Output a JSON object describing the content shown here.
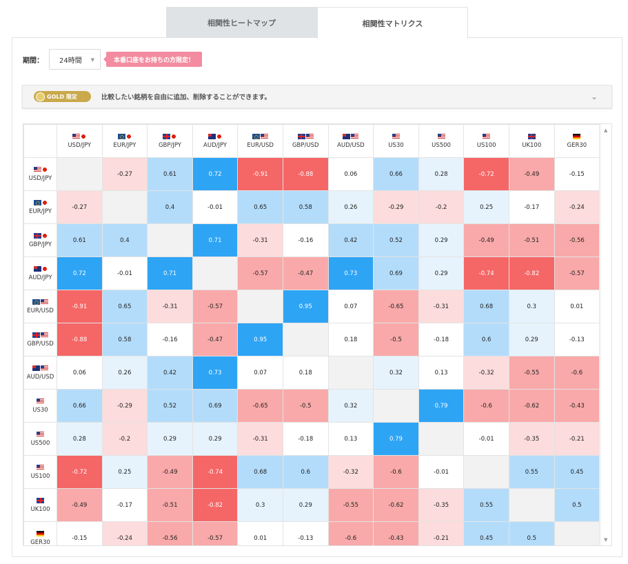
{
  "tabs": [
    {
      "label": "相関性ヒートマップ"
    },
    {
      "label": "相関性マトリクス"
    }
  ],
  "period": {
    "label": "期間：",
    "selected": "24時間",
    "live_badge": "本番口座をお持ちの方限定！"
  },
  "gold_banner": {
    "badge": "GOLD 限定",
    "text": "比較したい銘柄を自由に追加、削除することができます。"
  },
  "symbols": [
    {
      "name": "USD/JPY",
      "flags": [
        "us",
        "jp"
      ]
    },
    {
      "name": "EUR/JPY",
      "flags": [
        "eu",
        "jp"
      ]
    },
    {
      "name": "GBP/JPY",
      "flags": [
        "gb",
        "jp"
      ]
    },
    {
      "name": "AUD/JPY",
      "flags": [
        "au",
        "jp"
      ]
    },
    {
      "name": "EUR/USD",
      "flags": [
        "eu",
        "us"
      ]
    },
    {
      "name": "GBP/USD",
      "flags": [
        "gb",
        "us"
      ]
    },
    {
      "name": "AUD/USD",
      "flags": [
        "au",
        "us"
      ]
    },
    {
      "name": "US30",
      "flags": [
        "us"
      ]
    },
    {
      "name": "US500",
      "flags": [
        "us"
      ]
    },
    {
      "name": "US100",
      "flags": [
        "us"
      ]
    },
    {
      "name": "UK100",
      "flags": [
        "gb"
      ]
    },
    {
      "name": "GER30",
      "flags": [
        "de"
      ]
    }
  ],
  "matrix": [
    [
      null,
      -0.27,
      0.61,
      0.72,
      -0.91,
      -0.88,
      0.06,
      0.66,
      0.28,
      -0.72,
      -0.49,
      -0.15
    ],
    [
      -0.27,
      null,
      0.4,
      -0.01,
      0.65,
      0.58,
      0.26,
      -0.29,
      -0.2,
      0.25,
      -0.17,
      -0.24
    ],
    [
      0.61,
      0.4,
      null,
      0.71,
      -0.31,
      -0.16,
      0.42,
      0.52,
      0.29,
      -0.49,
      -0.51,
      -0.56
    ],
    [
      0.72,
      -0.01,
      0.71,
      null,
      -0.57,
      -0.47,
      0.73,
      0.69,
      0.29,
      -0.74,
      -0.82,
      -0.57
    ],
    [
      -0.91,
      0.65,
      -0.31,
      -0.57,
      null,
      0.95,
      0.07,
      -0.65,
      -0.31,
      0.68,
      0.3,
      0.01
    ],
    [
      -0.88,
      0.58,
      -0.16,
      -0.47,
      0.95,
      null,
      0.18,
      -0.5,
      -0.18,
      0.6,
      0.29,
      -0.13
    ],
    [
      0.06,
      0.26,
      0.42,
      0.73,
      0.07,
      0.18,
      null,
      0.32,
      0.13,
      -0.32,
      -0.55,
      -0.6
    ],
    [
      0.66,
      -0.29,
      0.52,
      0.69,
      -0.65,
      -0.5,
      0.32,
      null,
      0.79,
      -0.6,
      -0.62,
      -0.43
    ],
    [
      0.28,
      -0.2,
      0.29,
      0.29,
      -0.31,
      -0.18,
      0.13,
      0.79,
      null,
      -0.01,
      -0.35,
      -0.21
    ],
    [
      -0.72,
      0.25,
      -0.49,
      -0.74,
      0.68,
      0.6,
      -0.32,
      -0.6,
      -0.01,
      null,
      0.55,
      0.45
    ],
    [
      -0.49,
      -0.17,
      -0.51,
      -0.82,
      0.3,
      0.29,
      -0.55,
      -0.62,
      -0.35,
      0.55,
      null,
      0.5
    ],
    [
      -0.15,
      -0.24,
      -0.56,
      -0.57,
      0.01,
      -0.13,
      -0.6,
      -0.43,
      -0.21,
      0.45,
      0.5,
      null
    ]
  ],
  "colors": {
    "strong_pos": "#2ea4f5",
    "mid_pos": "#b3dcfb",
    "weak_pos": "#e6f3fd",
    "strong_neg": "#f56666",
    "mid_neg": "#f9a9a9",
    "weak_neg": "#fcdcdc",
    "neutral": "#ffffff",
    "diagonal": "#f2f2f2"
  }
}
